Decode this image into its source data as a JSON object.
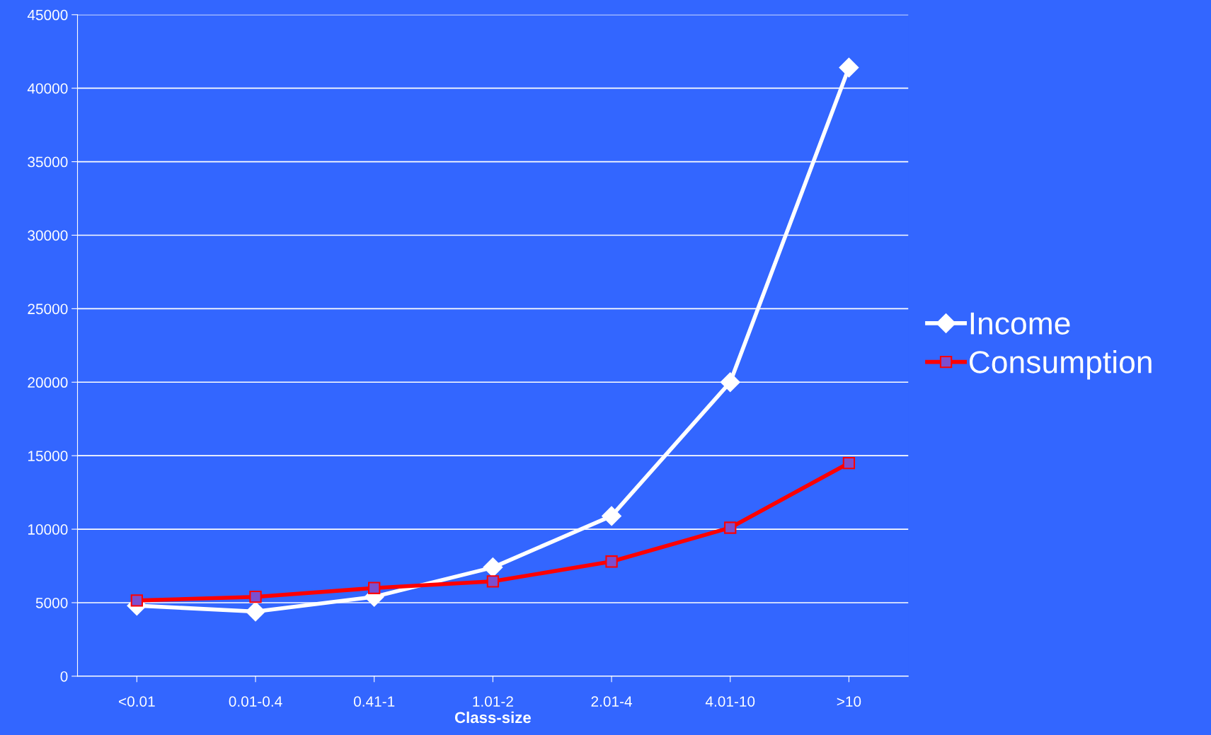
{
  "chart_data": {
    "type": "line",
    "xlabel": "Class-size",
    "categories": [
      "<0.01",
      "0.01-0.4",
      "0.41-1",
      "1.01-2",
      "2.01-4",
      "4.01-10",
      ">10"
    ],
    "series": [
      {
        "name": "Income",
        "color": "#ffffff",
        "marker": "diamond",
        "values": [
          4800,
          4400,
          5400,
          7400,
          10900,
          20000,
          41400
        ]
      },
      {
        "name": "Consumption",
        "color": "#ff0000",
        "marker": "square",
        "values": [
          5150,
          5400,
          6000,
          6450,
          7800,
          10100,
          14500
        ]
      }
    ],
    "ylim": [
      0,
      45000
    ],
    "yticks": [
      0,
      5000,
      10000,
      15000,
      20000,
      25000,
      30000,
      35000,
      40000,
      45000
    ],
    "grid": "y",
    "legend": "right",
    "line_style": "solid"
  }
}
